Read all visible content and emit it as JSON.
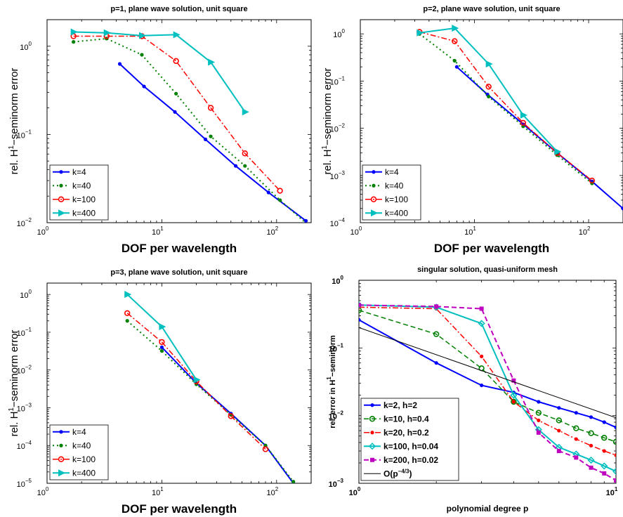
{
  "chart_data": [
    {
      "type": "line",
      "title": "p=1, plane wave solution, unit square",
      "xlabel": "DOF per wavelength",
      "ylabel_pre": "rel. H",
      "ylabel_sup": "1",
      "ylabel_post": "−seminorm error",
      "xscale": "log",
      "yscale": "log",
      "xlim": [
        1,
        200
      ],
      "ylim": [
        0.01,
        2
      ],
      "xticks": [
        {
          "v": 1,
          "e": "0"
        },
        {
          "v": 10,
          "e": "1"
        },
        {
          "v": 100,
          "e": "2"
        }
      ],
      "yticks": [
        {
          "v": 0.01,
          "e": "−2"
        },
        {
          "v": 0.1,
          "e": "−1"
        },
        {
          "v": 1,
          "e": "0"
        }
      ],
      "legend_position": "bottom-left",
      "series": [
        {
          "name": "k=4",
          "color": "#0000ff",
          "dash": "solid",
          "marker": "dot",
          "lw": 2,
          "x": [
            4.3,
            7,
            13,
            24,
            44,
            85,
            180
          ],
          "y": [
            0.63,
            0.35,
            0.18,
            0.088,
            0.044,
            0.022,
            0.0105
          ]
        },
        {
          "name": "k=40",
          "color": "#008000",
          "dash": "dot",
          "marker": "dot",
          "lw": 2,
          "x": [
            1.7,
            3.3,
            6.7,
            13.3,
            26.7,
            53,
            107,
            200
          ],
          "y": [
            1.12,
            1.22,
            0.8,
            0.29,
            0.095,
            0.044,
            0.018,
            0.0088
          ]
        },
        {
          "name": "k=100",
          "color": "#ff0000",
          "dash": "dashdot",
          "marker": "circle",
          "lw": 1.5,
          "x": [
            1.7,
            3.3,
            6.7,
            13.3,
            26.7,
            53,
            107
          ],
          "y": [
            1.3,
            1.3,
            1.3,
            0.68,
            0.2,
            0.061,
            0.023
          ]
        },
        {
          "name": "k=400",
          "color": "#00bfbf",
          "dash": "solid",
          "marker": "tri",
          "lw": 2,
          "x": [
            1.7,
            3.3,
            6.7,
            13.3,
            26.7,
            53
          ],
          "y": [
            1.45,
            1.42,
            1.32,
            1.35,
            0.66,
            0.18
          ]
        }
      ]
    },
    {
      "type": "line",
      "title": "p=2, plane wave solution, unit square",
      "xlabel": "DOF per wavelength",
      "ylabel_pre": "rel. H",
      "ylabel_sup": "1",
      "ylabel_post": "−seminorm error",
      "xscale": "log",
      "yscale": "log",
      "xlim": [
        1,
        200
      ],
      "ylim": [
        0.0001,
        2
      ],
      "xticks": [
        {
          "v": 1,
          "e": "0"
        },
        {
          "v": 10,
          "e": "1"
        },
        {
          "v": 100,
          "e": "2"
        }
      ],
      "yticks": [
        {
          "v": 0.0001,
          "e": "−4"
        },
        {
          "v": 0.001,
          "e": "−3"
        },
        {
          "v": 0.01,
          "e": "−2"
        },
        {
          "v": 0.1,
          "e": "−1"
        },
        {
          "v": 1,
          "e": "0"
        }
      ],
      "legend_position": "bottom-left",
      "series": [
        {
          "name": "k=4",
          "color": "#0000ff",
          "dash": "solid",
          "marker": "dot",
          "lw": 2,
          "x": [
            7,
            13,
            27,
            53,
            107,
            200
          ],
          "y": [
            0.2,
            0.052,
            0.012,
            0.003,
            0.00075,
            0.0002
          ]
        },
        {
          "name": "k=40",
          "color": "#008000",
          "dash": "dot",
          "marker": "dot",
          "lw": 2,
          "x": [
            3.3,
            6.7,
            13.3,
            26.7,
            53,
            107
          ],
          "y": [
            1.0,
            0.27,
            0.047,
            0.011,
            0.0027,
            0.00068
          ]
        },
        {
          "name": "k=100",
          "color": "#ff0000",
          "dash": "dashdot",
          "marker": "circle",
          "lw": 1.5,
          "x": [
            3.3,
            6.7,
            13.3,
            26.7,
            53,
            107
          ],
          "y": [
            1.1,
            0.7,
            0.076,
            0.013,
            0.003,
            0.00078
          ]
        },
        {
          "name": "k=400",
          "color": "#00bfbf",
          "dash": "solid",
          "marker": "tri",
          "lw": 2,
          "x": [
            3.3,
            6.7,
            13.3,
            26.7,
            53
          ],
          "y": [
            1.05,
            1.32,
            0.23,
            0.019,
            0.0032
          ]
        }
      ]
    },
    {
      "type": "line",
      "title": "p=3, plane wave solution, unit square",
      "xlabel": "DOF per wavelength",
      "ylabel_pre": "rel. H",
      "ylabel_sup": "1",
      "ylabel_post": "−seminorm error",
      "xscale": "log",
      "yscale": "log",
      "xlim": [
        1,
        200
      ],
      "ylim": [
        1e-05,
        2
      ],
      "xticks": [
        {
          "v": 1,
          "e": "0"
        },
        {
          "v": 10,
          "e": "1"
        },
        {
          "v": 100,
          "e": "2"
        }
      ],
      "yticks": [
        {
          "v": 1e-05,
          "e": "−5"
        },
        {
          "v": 0.0001,
          "e": "−4"
        },
        {
          "v": 0.001,
          "e": "−3"
        },
        {
          "v": 0.01,
          "e": "−2"
        },
        {
          "v": 0.1,
          "e": "−1"
        },
        {
          "v": 1,
          "e": "0"
        }
      ],
      "legend_position": "bottom-left",
      "series": [
        {
          "name": "k=4",
          "color": "#0000ff",
          "dash": "solid",
          "marker": "dot",
          "lw": 2,
          "x": [
            10,
            20,
            40,
            80,
            140
          ],
          "y": [
            0.04,
            0.0045,
            0.0007,
            0.0001,
            1e-05
          ]
        },
        {
          "name": "k=40",
          "color": "#008000",
          "dash": "dot",
          "marker": "dot",
          "lw": 2,
          "x": [
            5,
            10,
            20,
            40,
            80,
            140
          ],
          "y": [
            0.2,
            0.032,
            0.0042,
            0.00065,
            0.0001,
            1.1e-05
          ]
        },
        {
          "name": "k=100",
          "color": "#ff0000",
          "dash": "dashdot",
          "marker": "circle",
          "lw": 1.5,
          "x": [
            5,
            10,
            20,
            40,
            80
          ],
          "y": [
            0.32,
            0.055,
            0.005,
            0.0006,
            8e-05
          ]
        },
        {
          "name": "k=400",
          "color": "#00bfbf",
          "dash": "solid",
          "marker": "tri",
          "lw": 2,
          "x": [
            5,
            10,
            20
          ],
          "y": [
            1.0,
            0.14,
            0.0055
          ]
        }
      ]
    },
    {
      "type": "line",
      "title": "singular solution, quasi-uniform mesh",
      "xlabel": "polynomial degree p",
      "ylabel_pre": "rel. error in H",
      "ylabel_sup": "1",
      "ylabel_post": "−seminorm",
      "xscale": "log",
      "yscale": "log",
      "xlim": [
        1,
        10
      ],
      "ylim": [
        0.001,
        1
      ],
      "xticks": [
        {
          "v": 1,
          "e": "0"
        },
        {
          "v": 10,
          "e": "1"
        }
      ],
      "yticks": [
        {
          "v": 0.001,
          "e": "−3"
        },
        {
          "v": 0.01,
          "e": "−2"
        },
        {
          "v": 0.1,
          "e": "−1"
        },
        {
          "v": 1,
          "e": "0"
        }
      ],
      "legend_position": "bottom-left",
      "series": [
        {
          "name": "k=2, h=2",
          "color": "#0000ff",
          "dash": "solid",
          "marker": "dot",
          "lw": 2,
          "x": [
            1,
            2,
            3,
            4,
            5,
            6,
            7,
            8,
            9,
            10
          ],
          "y": [
            0.26,
            0.06,
            0.028,
            0.022,
            0.016,
            0.013,
            0.011,
            0.0095,
            0.008,
            0.0067
          ]
        },
        {
          "name": "k=10, h=0.4",
          "color": "#008000",
          "dash": "dash",
          "marker": "circle",
          "lw": 1.5,
          "x": [
            1,
            2,
            3,
            4,
            5,
            6,
            7,
            8,
            9,
            10
          ],
          "y": [
            0.36,
            0.16,
            0.05,
            0.016,
            0.011,
            0.0085,
            0.0065,
            0.0055,
            0.0047,
            0.0041
          ]
        },
        {
          "name": "k=20, h=0.2",
          "color": "#ff0000",
          "dash": "dashdot",
          "marker": "dot",
          "lw": 1.5,
          "x": [
            1,
            2,
            3,
            4,
            5,
            6,
            7,
            8,
            9,
            10
          ],
          "y": [
            0.4,
            0.38,
            0.075,
            0.016,
            0.0085,
            0.006,
            0.0045,
            0.0036,
            0.003,
            0.0026
          ]
        },
        {
          "name": "k=100, h=0.04",
          "color": "#00bfbf",
          "dash": "solid",
          "marker": "diamond",
          "lw": 2,
          "x": [
            1,
            2,
            3,
            4,
            5,
            6,
            7,
            8,
            9,
            10
          ],
          "y": [
            0.43,
            0.4,
            0.23,
            0.02,
            0.0062,
            0.0034,
            0.0027,
            0.0022,
            0.0018,
            0.0015
          ]
        },
        {
          "name": "k=200, h=0.02",
          "color": "#bf00bf",
          "dash": "dash",
          "marker": "square",
          "lw": 2,
          "x": [
            1,
            2,
            3,
            4,
            5,
            6,
            7,
            8,
            9,
            10
          ],
          "y": [
            0.43,
            0.41,
            0.38,
            0.033,
            0.0056,
            0.003,
            0.0024,
            0.0017,
            0.0014,
            0.0011
          ]
        },
        {
          "name": "O(p⁻⁴ᐟ³)",
          "label_pre": "O(p",
          "label_sup": "−4/3",
          "label_post": ")",
          "color": "#000000",
          "dash": "solid",
          "marker": "none",
          "lw": 1,
          "x": [
            1,
            10
          ],
          "y": [
            0.2,
            0.0093
          ]
        }
      ]
    }
  ]
}
